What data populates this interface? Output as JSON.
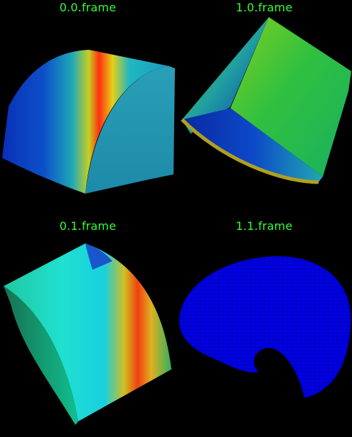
{
  "viewports": [
    {
      "label": "0.0.frame"
    },
    {
      "label": "1.0.frame"
    },
    {
      "label": "0.1.frame"
    },
    {
      "label": "1.1.frame"
    }
  ],
  "colors": {
    "label": "#33ff33",
    "background": "#000000",
    "mesh": "#0000ff"
  }
}
